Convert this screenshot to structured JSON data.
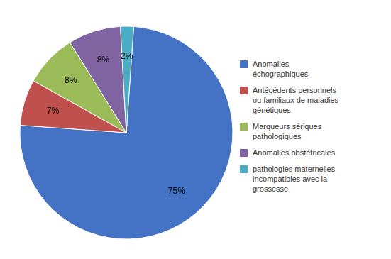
{
  "chart_data": {
    "type": "pie",
    "categories": [
      "Anomalies\néchographiques",
      "Antécédents personnels\nou familiaux de maladies\ngénétiques",
      "Marqueurs sériques\npathologiques",
      "Anomalies obstétricales",
      "pathologies maternelles\nincompatibles avec la\ngrossesse"
    ],
    "values": [
      75,
      7,
      8,
      8,
      2
    ],
    "value_labels": [
      "75%",
      "7%",
      "8%",
      "8%",
      "2%"
    ],
    "colors": [
      "#4472C4",
      "#C0504D",
      "#9BBB59",
      "#8064A2",
      "#4BACC6"
    ],
    "data_labels": true,
    "legend": "right"
  }
}
